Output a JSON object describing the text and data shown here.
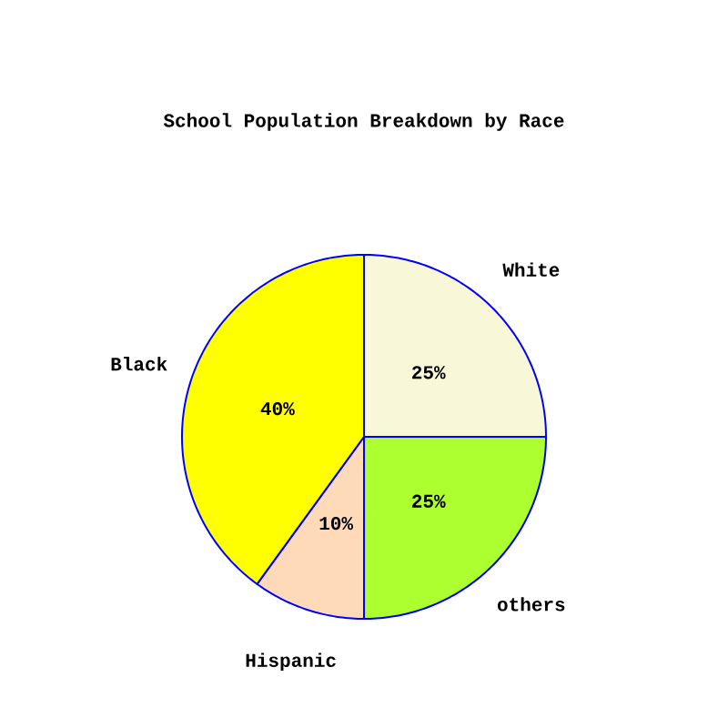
{
  "chart_data": {
    "type": "pie",
    "title": "School Population Breakdown by Race",
    "categories": [
      "White",
      "others",
      "Hispanic",
      "Black"
    ],
    "values": [
      25,
      25,
      10,
      40
    ],
    "value_labels": [
      "25%",
      "25%",
      "10%",
      "40%"
    ],
    "colors": [
      "#f8f8d8",
      "#adff2f",
      "#ffdab9",
      "#ffff00"
    ],
    "legend": false
  }
}
